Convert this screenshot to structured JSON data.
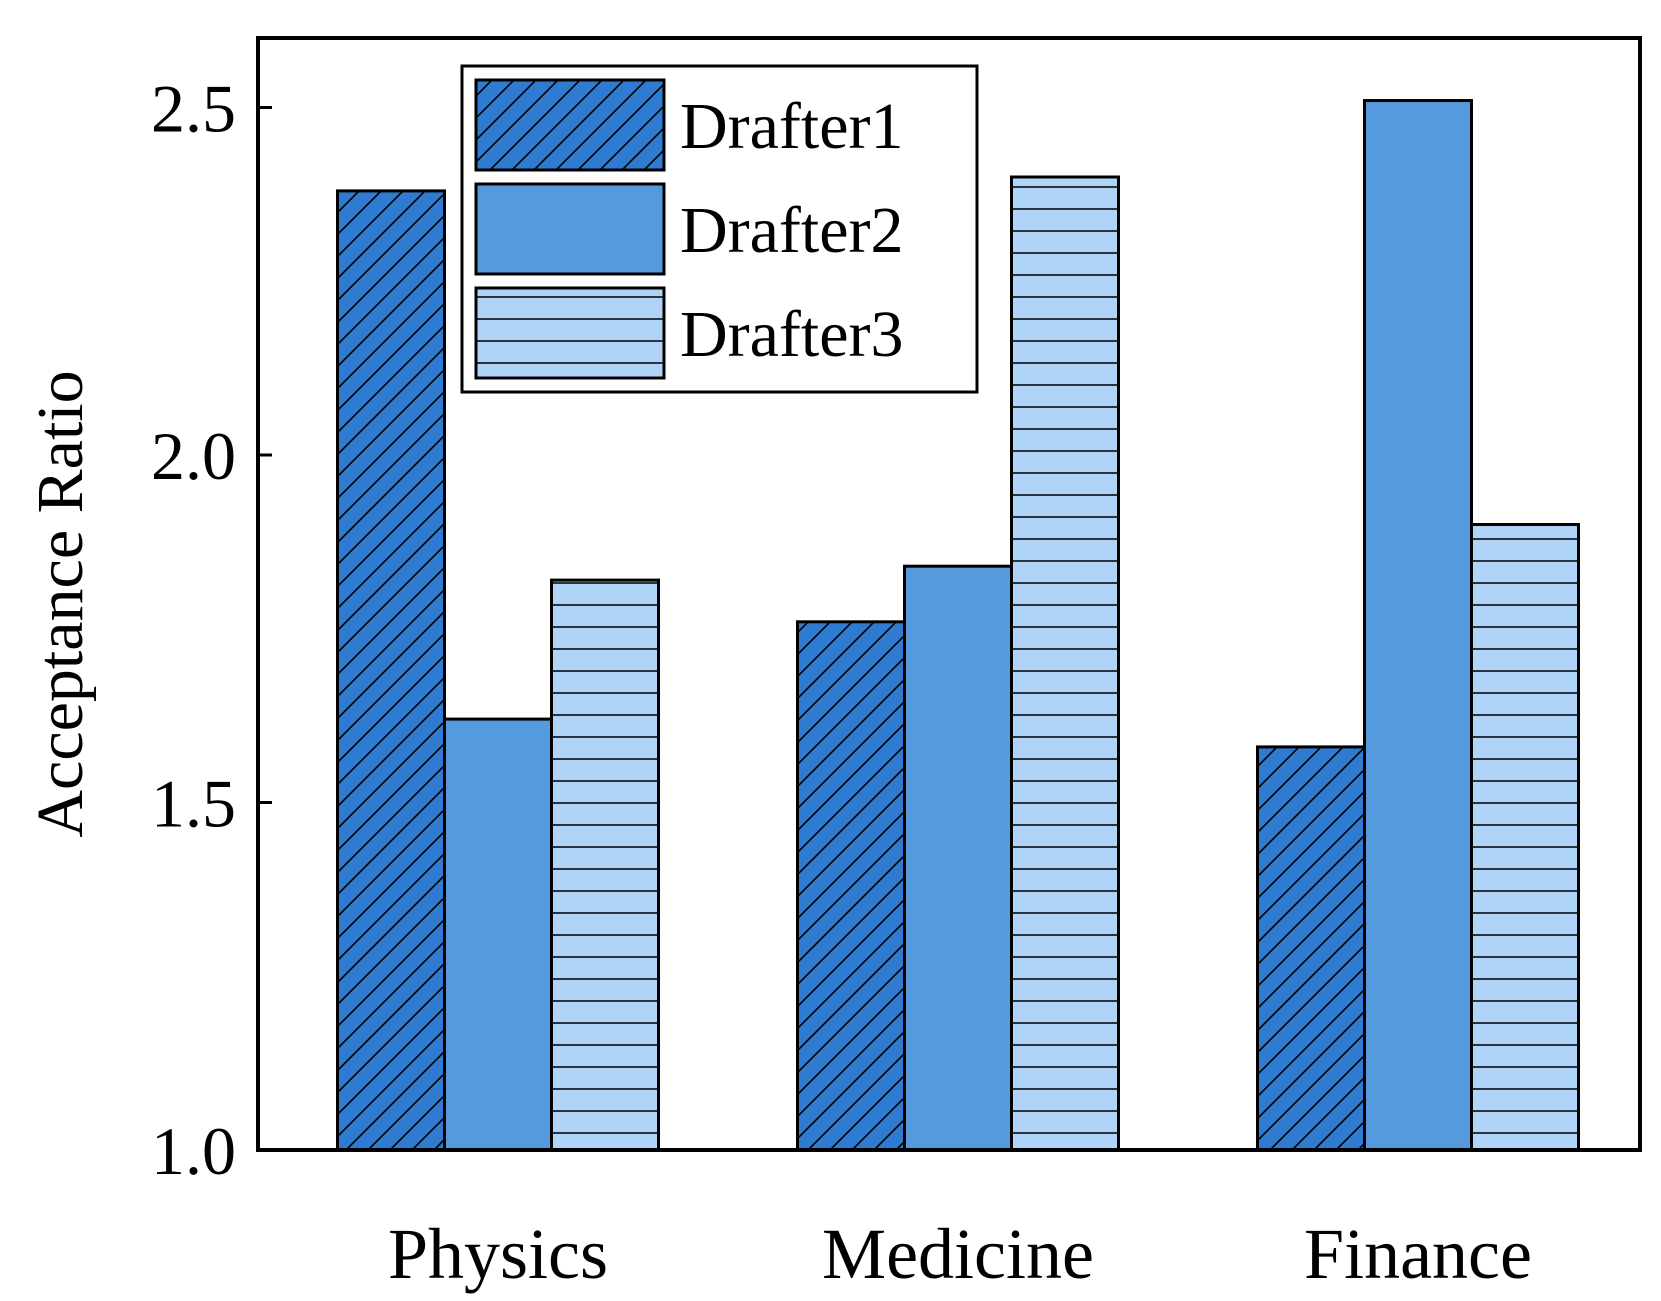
{
  "chart_data": {
    "type": "bar",
    "title": "",
    "xlabel": "",
    "ylabel": "Acceptance Ratio",
    "categories": [
      "Physics",
      "Medicine",
      "Finance"
    ],
    "ylim": [
      1.0,
      2.6
    ],
    "yticks": [
      "1.0",
      "1.5",
      "2.0",
      "2.5"
    ],
    "grid": false,
    "legend_position": "top-left",
    "series": [
      {
        "name": "Drafter1",
        "values": [
          2.38,
          1.76,
          1.58
        ],
        "color": "#2f7bd2",
        "pattern": "diagonal"
      },
      {
        "name": "Drafter2",
        "values": [
          1.62,
          1.84,
          2.51
        ],
        "color": "#569ade",
        "pattern": "none"
      },
      {
        "name": "Drafter3",
        "values": [
          1.82,
          2.4,
          1.9
        ],
        "color": "#b0d4f7",
        "pattern": "horizontal"
      }
    ]
  }
}
